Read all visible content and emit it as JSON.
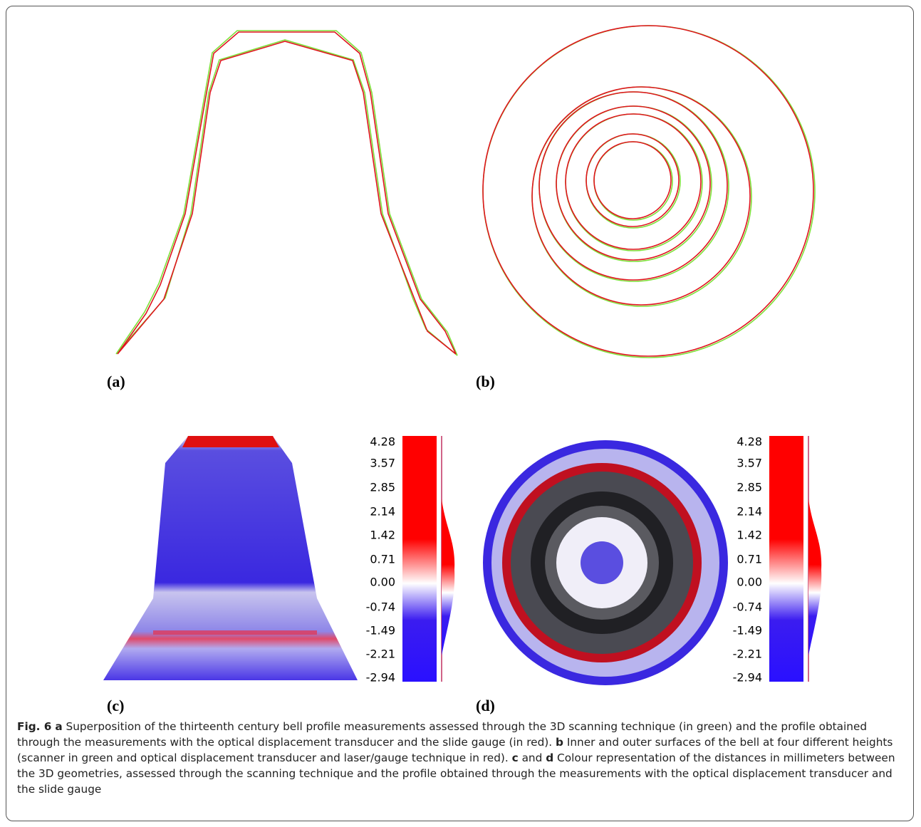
{
  "panels": [
    {
      "label": "(a)"
    },
    {
      "label": "(b)"
    },
    {
      "label": "(c)"
    },
    {
      "label": "(d)"
    }
  ],
  "colorbars": [
    {
      "ticks": [
        "4.28",
        "3.57",
        "2.85",
        "2.14",
        "1.42",
        "0.71",
        "0.00",
        "-0.74",
        "-1.49",
        "-2.21",
        "-2.94"
      ]
    },
    {
      "ticks": [
        "4.28",
        "3.57",
        "2.85",
        "2.14",
        "1.42",
        "0.71",
        "0.00",
        "-0.74",
        "-1.49",
        "-2.21",
        "-2.94"
      ]
    }
  ],
  "caption": {
    "figure_label": "Fig. 6",
    "segments": [
      {
        "label": "a",
        "text": "Superposition of the thirteenth century bell profile measurements assessed through the 3D scanning technique (in green) and the profile obtained through the measurements with the optical displacement transducer and the slide gauge (in red)."
      },
      {
        "label": "b",
        "text": "Inner and outer surfaces of the bell at four different heights (scanner in green and optical displacement transducer and laser/gauge technique in red)."
      },
      {
        "label": "c",
        "text": "and"
      },
      {
        "label": "d",
        "text": "Colour representation of the distances in millimeters between the 3D geometries, assessed through the scanning technique and the profile obtained through the measurements with the optical displacement transducer and the slide gauge"
      }
    ]
  }
}
